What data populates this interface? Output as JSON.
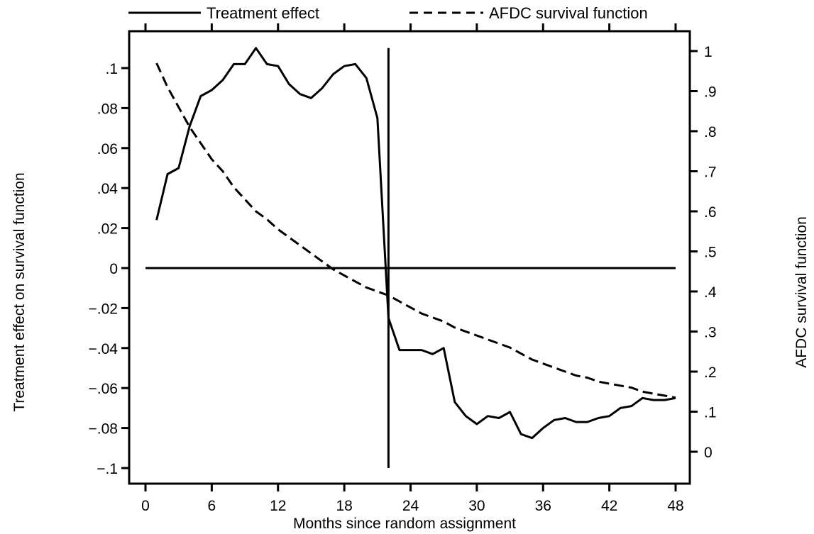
{
  "chart_data": {
    "type": "line",
    "title": "",
    "xlabel": "Months since random assignment",
    "ylabel": "Treatment effect on survival function",
    "y2label": "AFDC survival function",
    "xlim": [
      0,
      48
    ],
    "ylim": [
      -0.1,
      0.1
    ],
    "y2lim": [
      0,
      1
    ],
    "xticks": [
      0,
      6,
      12,
      18,
      24,
      30,
      36,
      42,
      48
    ],
    "xtick_labels": [
      "0",
      "6",
      "12",
      "18",
      "24",
      "30",
      "36",
      "42",
      "48"
    ],
    "yticks": [
      -0.1,
      -0.08,
      -0.06,
      -0.04,
      -0.02,
      0,
      0.02,
      0.04,
      0.06,
      0.08,
      0.1
    ],
    "ytick_labels": [
      "−.1",
      "−.08",
      "−.06",
      "−.04",
      "−.02",
      "0",
      ".02",
      ".04",
      ".06",
      ".08",
      ".1"
    ],
    "y2ticks": [
      0,
      0.1,
      0.2,
      0.3,
      0.4,
      0.5,
      0.6,
      0.7,
      0.8,
      0.9,
      1
    ],
    "y2tick_labels": [
      "0",
      ".1",
      ".2",
      ".3",
      ".4",
      ".5",
      ".6",
      ".7",
      ".8",
      ".9",
      "1"
    ],
    "legend_position": "top",
    "grid": false,
    "series": [
      {
        "name": "Treatment effect",
        "axis": "left",
        "style": "solid",
        "x": [
          1,
          2,
          3,
          4,
          5,
          6,
          7,
          8,
          9,
          10,
          11,
          12,
          13,
          14,
          15,
          16,
          17,
          18,
          19,
          20,
          21,
          22,
          23,
          24,
          25,
          26,
          27,
          28,
          29,
          30,
          31,
          32,
          33,
          34,
          35,
          36,
          37,
          38,
          39,
          40,
          41,
          42,
          43,
          44,
          45,
          46,
          47,
          48
        ],
        "values": [
          0.024,
          0.047,
          0.05,
          0.071,
          0.086,
          0.089,
          0.094,
          0.102,
          0.102,
          0.11,
          0.102,
          0.101,
          0.092,
          0.087,
          0.085,
          0.09,
          0.097,
          0.101,
          0.102,
          0.095,
          0.075,
          -0.025,
          -0.041,
          -0.041,
          -0.041,
          -0.043,
          -0.04,
          -0.067,
          -0.074,
          -0.078,
          -0.074,
          -0.075,
          -0.072,
          -0.083,
          -0.085,
          -0.08,
          -0.076,
          -0.075,
          -0.077,
          -0.077,
          -0.075,
          -0.074,
          -0.07,
          -0.069,
          -0.065,
          -0.066,
          -0.066,
          -0.065
        ]
      },
      {
        "name": "AFDC survival function",
        "axis": "right",
        "style": "dashed",
        "x": [
          1,
          2,
          3,
          4,
          5,
          6,
          7,
          8,
          9,
          10,
          11,
          12,
          13,
          14,
          15,
          16,
          17,
          18,
          19,
          20,
          21,
          22,
          23,
          24,
          25,
          26,
          27,
          28,
          29,
          30,
          31,
          32,
          33,
          34,
          35,
          36,
          37,
          38,
          39,
          40,
          41,
          42,
          43,
          44,
          45,
          46,
          47,
          48
        ],
        "values": [
          0.97,
          0.91,
          0.86,
          0.81,
          0.77,
          0.73,
          0.7,
          0.66,
          0.63,
          0.6,
          0.58,
          0.555,
          0.535,
          0.515,
          0.495,
          0.475,
          0.455,
          0.44,
          0.425,
          0.41,
          0.4,
          0.39,
          0.375,
          0.36,
          0.345,
          0.335,
          0.325,
          0.31,
          0.3,
          0.29,
          0.28,
          0.27,
          0.26,
          0.245,
          0.23,
          0.22,
          0.21,
          0.2,
          0.19,
          0.185,
          0.175,
          0.17,
          0.165,
          0.16,
          0.15,
          0.145,
          0.14,
          0.135
        ]
      }
    ],
    "reference_lines": [
      {
        "orientation": "horizontal",
        "value": 0,
        "x_range": [
          0,
          48
        ]
      },
      {
        "orientation": "vertical",
        "value": 22,
        "y_range": [
          -0.1,
          0.11
        ]
      }
    ]
  }
}
